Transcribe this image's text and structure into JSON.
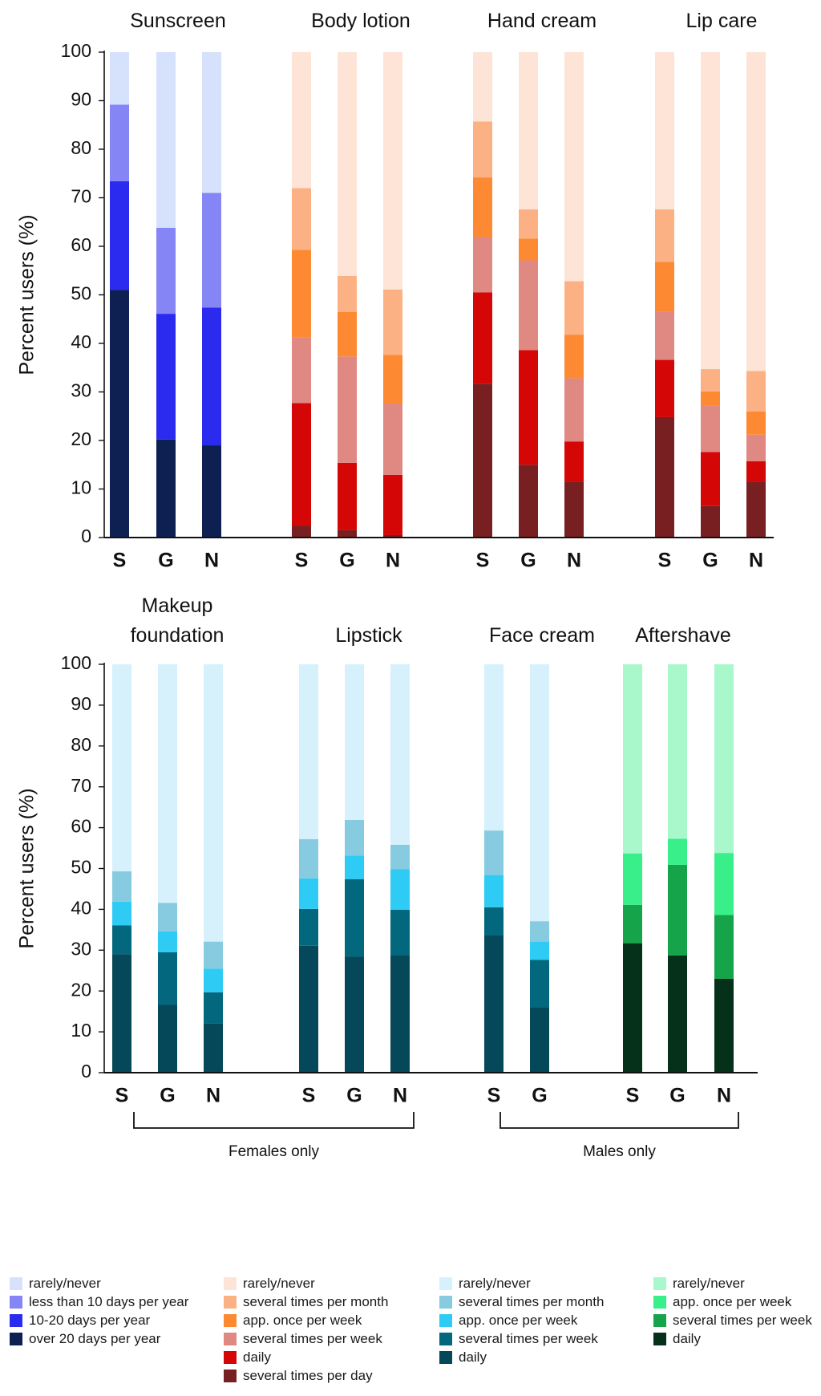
{
  "chart_data": [
    {
      "type": "bar",
      "stacked": true,
      "ylabel": "Percent users (%)",
      "ylim": [
        0,
        100
      ],
      "yticks": [
        0,
        10,
        20,
        30,
        40,
        50,
        60,
        70,
        80,
        90,
        100
      ],
      "groups": [
        {
          "title": "Sunscreen",
          "palette": "blue",
          "categories": [
            "S",
            "G",
            "N"
          ],
          "series": [
            {
              "name": "over 20 days per year",
              "values": [
                51,
                20.2,
                19
              ]
            },
            {
              "name": "10-20 days per year",
              "values": [
                22.4,
                25.9,
                28.4
              ]
            },
            {
              "name": "less than 10 days per year",
              "values": [
                15.8,
                17.7,
                23.6
              ]
            },
            {
              "name": "rarely/never",
              "values": [
                10.8,
                36.2,
                29
              ]
            }
          ]
        },
        {
          "title": "Body lotion",
          "palette": "red",
          "categories": [
            "S",
            "G",
            "N"
          ],
          "series": [
            {
              "name": "several times per day",
              "values": [
                2.4,
                1.5,
                0.5
              ]
            },
            {
              "name": "daily",
              "values": [
                25.3,
                13.9,
                12.4
              ]
            },
            {
              "name": "several times per week",
              "values": [
                13.6,
                21.9,
                14.7
              ]
            },
            {
              "name": "app. once per week",
              "values": [
                18,
                9.2,
                10
              ]
            },
            {
              "name": "several times per month",
              "values": [
                12.7,
                7.4,
                13.5
              ]
            },
            {
              "name": "rarely/never",
              "values": [
                28,
                46.1,
                48.9
              ]
            }
          ]
        },
        {
          "title": "Hand cream",
          "palette": "red",
          "categories": [
            "S",
            "G",
            "N"
          ],
          "series": [
            {
              "name": "several times per day",
              "values": [
                31.7,
                15,
                11.5
              ]
            },
            {
              "name": "daily",
              "values": [
                18.8,
                23.6,
                8.3
              ]
            },
            {
              "name": "several times per week",
              "values": [
                11.4,
                18.5,
                13
              ]
            },
            {
              "name": "app. once per week",
              "values": [
                12.3,
                4.5,
                9
              ]
            },
            {
              "name": "several times per month",
              "values": [
                11.5,
                6,
                11
              ]
            },
            {
              "name": "rarely/never",
              "values": [
                14.3,
                32.4,
                47.2
              ]
            }
          ]
        },
        {
          "title": "Lip care",
          "palette": "red",
          "categories": [
            "S",
            "G",
            "N"
          ],
          "series": [
            {
              "name": "several times per day",
              "values": [
                24.8,
                6.5,
                11.5
              ]
            },
            {
              "name": "daily",
              "values": [
                11.8,
                11.1,
                4.2
              ]
            },
            {
              "name": "several times per week",
              "values": [
                10,
                9.6,
                5.5
              ]
            },
            {
              "name": "app. once per week",
              "values": [
                10.2,
                2.9,
                4.8
              ]
            },
            {
              "name": "several times per month",
              "values": [
                10.8,
                4.6,
                8.3
              ]
            },
            {
              "name": "rarely/never",
              "values": [
                32.4,
                65.3,
                65.7
              ]
            }
          ]
        }
      ]
    },
    {
      "type": "bar",
      "stacked": true,
      "ylabel": "Percent users (%)",
      "ylim": [
        0,
        100
      ],
      "yticks": [
        0,
        10,
        20,
        30,
        40,
        50,
        60,
        70,
        80,
        90,
        100
      ],
      "groups": [
        {
          "title_lines": [
            "Makeup",
            "foundation"
          ],
          "palette": "teal",
          "categories": [
            "S",
            "G",
            "N"
          ],
          "series": [
            {
              "name": "daily",
              "values": [
                29,
                16.6,
                12
              ]
            },
            {
              "name": "several times per week",
              "values": [
                7.1,
                12.9,
                7.7
              ]
            },
            {
              "name": "app. once per week",
              "values": [
                5.8,
                5.1,
                5.8
              ]
            },
            {
              "name": "several times per month",
              "values": [
                7.4,
                7,
                6.6
              ]
            },
            {
              "name": "rarely/never",
              "values": [
                50.7,
                58.4,
                67.9
              ]
            }
          ]
        },
        {
          "title": "Lipstick",
          "palette": "teal",
          "categories": [
            "S",
            "G",
            "N"
          ],
          "series": [
            {
              "name": "daily",
              "values": [
                31.1,
                28.4,
                28.8
              ]
            },
            {
              "name": "several times per week",
              "values": [
                9,
                19,
                11.1
              ]
            },
            {
              "name": "app. once per week",
              "values": [
                7.5,
                5.8,
                9.9
              ]
            },
            {
              "name": "several times per month",
              "values": [
                9.6,
                8.7,
                6
              ]
            },
            {
              "name": "rarely/never",
              "values": [
                42.8,
                38.1,
                44.2
              ]
            }
          ]
        },
        {
          "title": "Face cream",
          "palette": "teal",
          "categories": [
            "S",
            "G"
          ],
          "series": [
            {
              "name": "daily",
              "values": [
                33.6,
                16
              ]
            },
            {
              "name": "several times per week",
              "values": [
                6.9,
                11.6
              ]
            },
            {
              "name": "app. once per week",
              "values": [
                7.9,
                4.5
              ]
            },
            {
              "name": "several times per month",
              "values": [
                10.9,
                5
              ]
            },
            {
              "name": "rarely/never",
              "values": [
                40.7,
                62.9
              ]
            }
          ]
        },
        {
          "title": "Aftershave",
          "palette": "green",
          "categories": [
            "S",
            "G",
            "N"
          ],
          "series": [
            {
              "name": "daily",
              "values": [
                31.7,
                28.7,
                23
              ]
            },
            {
              "name": "several times per week",
              "values": [
                9.4,
                22.2,
                15.6
              ]
            },
            {
              "name": "app. once per week",
              "values": [
                12.6,
                6.4,
                15.2
              ]
            },
            {
              "name": "rarely/never",
              "values": [
                46.3,
                42.7,
                46.2
              ]
            }
          ]
        }
      ],
      "brackets": [
        {
          "label": "Females only",
          "from_group": 0,
          "to_group": 1
        },
        {
          "label": "Males only",
          "from_group": 2,
          "to_group": 3
        }
      ]
    }
  ],
  "colors": {
    "blue": {
      "rarely/never": "#d6e2fb",
      "less than 10 days per year": "#8585f6",
      "10-20 days per year": "#2b2bef",
      "over 20 days per year": "#0e1f52"
    },
    "red": {
      "rarely/never": "#fde4d6",
      "several times per month": "#fcb184",
      "app. once per week": "#fd8a33",
      "several times per week": "#e08882",
      "daily": "#d40606",
      "several times per day": "#771f21"
    },
    "teal": {
      "rarely/never": "#d6f1fc",
      "several times per month": "#87cbe0",
      "app. once per week": "#2ecbf4",
      "several times per week": "#03677d",
      "daily": "#05485a"
    },
    "green": {
      "rarely/never": "#a8f8cb",
      "app. once per week": "#38ef8a",
      "several times per week": "#16a44a",
      "daily": "#05311a"
    }
  },
  "legend": [
    {
      "palette": "blue",
      "items": [
        "rarely/never",
        "less than 10 days per year",
        "10-20 days per year",
        "over 20 days per year"
      ]
    },
    {
      "palette": "red",
      "items": [
        "rarely/never",
        "several times per month",
        "app. once per week",
        "several times per week",
        "daily",
        "several times per day"
      ]
    },
    {
      "palette": "teal",
      "items": [
        "rarely/never",
        "several times per month",
        "app. once per week",
        "several times per week",
        "daily"
      ]
    },
    {
      "palette": "green",
      "items": [
        "rarely/never",
        "app. once per week",
        "several times per week",
        "daily"
      ]
    }
  ]
}
